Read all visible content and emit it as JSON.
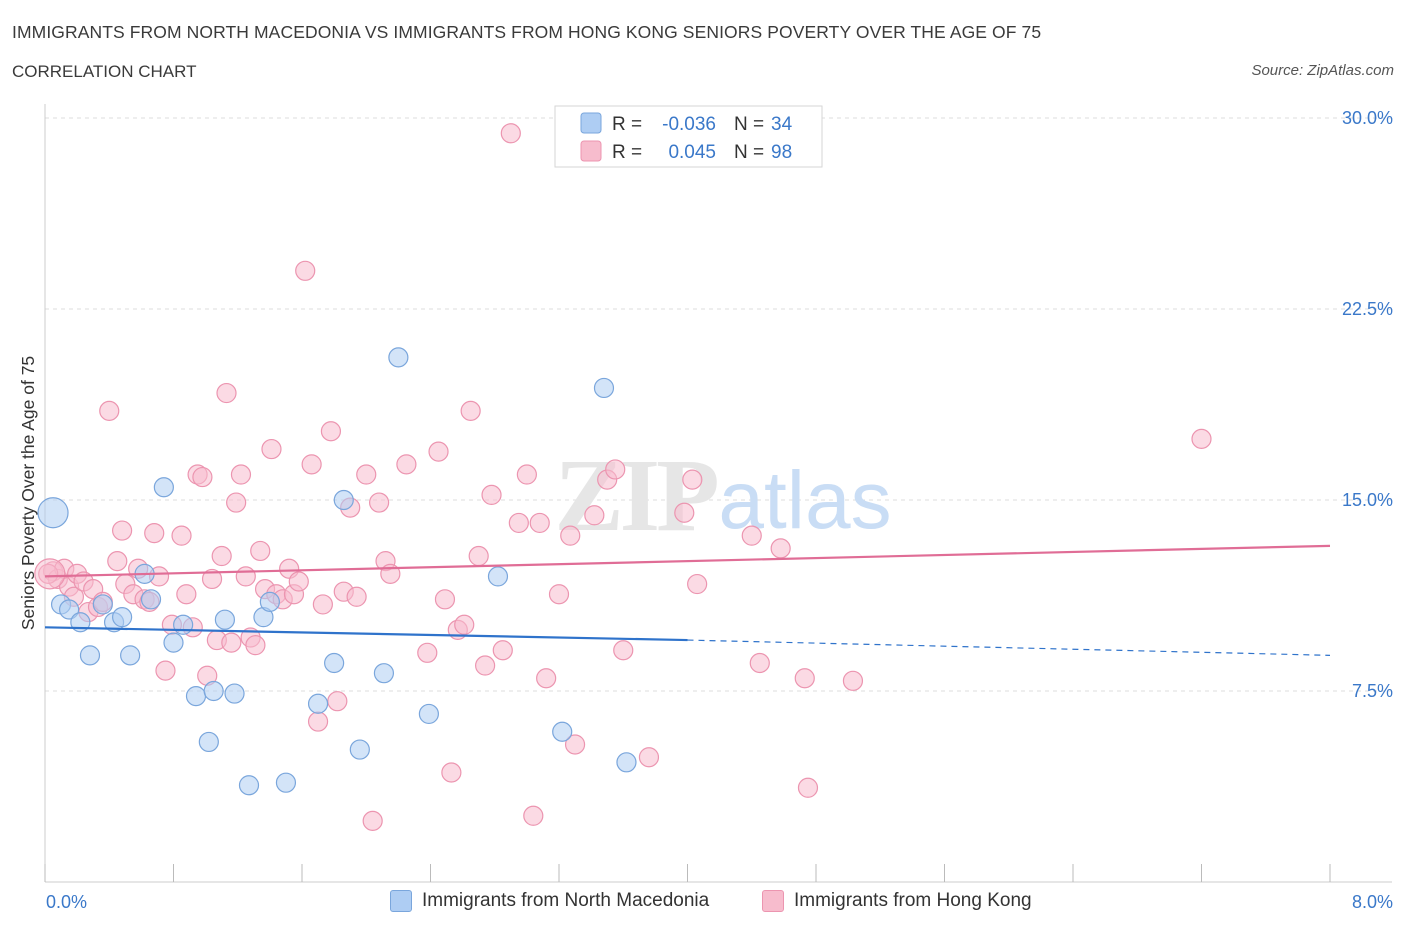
{
  "header": {
    "title": "IMMIGRANTS FROM NORTH MACEDONIA VS IMMIGRANTS FROM HONG KONG SENIORS POVERTY OVER THE AGE OF 75",
    "subtitle": "CORRELATION CHART",
    "source": "Source: ZipAtlas.com"
  },
  "watermark": {
    "zip": "ZIP",
    "atlas": "atlas"
  },
  "colors": {
    "blue_fill": "#aecdf3",
    "blue_stroke": "#7aa6dc",
    "blue_line": "#2f73cb",
    "pink_fill": "#f7bccd",
    "pink_stroke": "#ec95b0",
    "pink_line": "#e06d96",
    "axis_label": "#3a78c9",
    "grid": "#dddddd"
  },
  "stats_box": {
    "rows": [
      {
        "r_label": "R =",
        "r_value": "-0.036",
        "n_label": "N =",
        "n_value": "34",
        "series": "blue"
      },
      {
        "r_label": "R =",
        "r_value": "0.045",
        "n_label": "N =",
        "n_value": "98",
        "series": "pink"
      }
    ]
  },
  "chart_data": {
    "type": "scatter",
    "title": "IMMIGRANTS FROM NORTH MACEDONIA VS IMMIGRANTS FROM HONG KONG SENIORS POVERTY OVER THE AGE OF 75",
    "xlabel": "",
    "ylabel": "Seniors Poverty Over the Age of 75",
    "xlim": [
      0,
      8
    ],
    "ylim": [
      0,
      30
    ],
    "x_tick_labels": [
      "0.0%",
      "8.0%"
    ],
    "y_ticks": [
      7.5,
      15,
      22.5,
      30
    ],
    "y_tick_labels": [
      "7.5%",
      "15.0%",
      "22.5%",
      "30.0%"
    ],
    "grid": "horizontal dashed",
    "legend_position": "bottom-center",
    "series": [
      {
        "name": "Immigrants from North Macedonia",
        "color": "blue",
        "R": -0.036,
        "N": 34,
        "trend": {
          "x": [
            0,
            4
          ],
          "y": [
            10.0,
            9.5
          ],
          "dashed_to": [
            8,
            8.9
          ]
        },
        "points": [
          [
            0.05,
            14.5
          ],
          [
            0.1,
            10.9
          ],
          [
            0.15,
            10.7
          ],
          [
            0.22,
            10.2
          ],
          [
            0.28,
            8.9
          ],
          [
            0.36,
            10.9
          ],
          [
            0.43,
            10.2
          ],
          [
            0.48,
            10.4
          ],
          [
            0.53,
            8.9
          ],
          [
            0.62,
            12.1
          ],
          [
            0.66,
            11.1
          ],
          [
            0.74,
            15.5
          ],
          [
            0.8,
            9.4
          ],
          [
            0.86,
            10.1
          ],
          [
            0.94,
            7.3
          ],
          [
            1.02,
            5.5
          ],
          [
            1.05,
            7.5
          ],
          [
            1.12,
            10.3
          ],
          [
            1.18,
            7.4
          ],
          [
            1.27,
            3.8
          ],
          [
            1.36,
            10.4
          ],
          [
            1.4,
            11.0
          ],
          [
            1.5,
            3.9
          ],
          [
            1.7,
            7.0
          ],
          [
            1.8,
            8.6
          ],
          [
            1.86,
            15.0
          ],
          [
            1.96,
            5.2
          ],
          [
            2.11,
            8.2
          ],
          [
            2.2,
            20.6
          ],
          [
            2.39,
            6.6
          ],
          [
            2.82,
            12.0
          ],
          [
            3.22,
            5.9
          ],
          [
            3.48,
            19.4
          ],
          [
            3.62,
            4.7
          ]
        ]
      },
      {
        "name": "Immigrants from Hong Kong",
        "color": "pink",
        "R": 0.045,
        "N": 98,
        "trend": {
          "x": [
            0,
            8
          ],
          "y": [
            12.0,
            13.2
          ]
        },
        "points": [
          [
            0.05,
            12.2
          ],
          [
            0.08,
            11.9
          ],
          [
            0.12,
            12.3
          ],
          [
            0.15,
            11.6
          ],
          [
            0.18,
            11.2
          ],
          [
            0.2,
            12.1
          ],
          [
            0.24,
            11.8
          ],
          [
            0.27,
            10.6
          ],
          [
            0.3,
            11.5
          ],
          [
            0.33,
            10.8
          ],
          [
            0.36,
            11.0
          ],
          [
            0.4,
            18.5
          ],
          [
            0.45,
            12.6
          ],
          [
            0.48,
            13.8
          ],
          [
            0.5,
            11.7
          ],
          [
            0.55,
            11.3
          ],
          [
            0.58,
            12.3
          ],
          [
            0.62,
            11.1
          ],
          [
            0.65,
            11.0
          ],
          [
            0.68,
            13.7
          ],
          [
            0.71,
            12.0
          ],
          [
            0.75,
            8.3
          ],
          [
            0.79,
            10.1
          ],
          [
            0.85,
            13.6
          ],
          [
            0.88,
            11.3
          ],
          [
            0.92,
            10.0
          ],
          [
            0.95,
            16.0
          ],
          [
            0.98,
            15.9
          ],
          [
            1.01,
            8.1
          ],
          [
            1.04,
            11.9
          ],
          [
            1.07,
            9.5
          ],
          [
            1.1,
            12.8
          ],
          [
            1.13,
            19.2
          ],
          [
            1.16,
            9.4
          ],
          [
            1.19,
            14.9
          ],
          [
            1.22,
            16.0
          ],
          [
            1.25,
            12.0
          ],
          [
            1.28,
            9.6
          ],
          [
            1.31,
            9.3
          ],
          [
            1.34,
            13.0
          ],
          [
            1.37,
            11.5
          ],
          [
            1.41,
            17.0
          ],
          [
            1.44,
            11.3
          ],
          [
            1.48,
            11.1
          ],
          [
            1.52,
            12.3
          ],
          [
            1.55,
            11.3
          ],
          [
            1.58,
            11.8
          ],
          [
            1.62,
            24.0
          ],
          [
            1.66,
            16.4
          ],
          [
            1.7,
            6.3
          ],
          [
            1.73,
            10.9
          ],
          [
            1.78,
            17.7
          ],
          [
            1.82,
            7.1
          ],
          [
            1.86,
            11.4
          ],
          [
            1.9,
            14.7
          ],
          [
            1.94,
            11.2
          ],
          [
            2.0,
            16.0
          ],
          [
            2.04,
            2.4
          ],
          [
            2.08,
            14.9
          ],
          [
            2.12,
            12.6
          ],
          [
            2.15,
            12.1
          ],
          [
            2.25,
            16.4
          ],
          [
            2.38,
            9.0
          ],
          [
            2.45,
            16.9
          ],
          [
            2.49,
            11.1
          ],
          [
            2.53,
            4.3
          ],
          [
            2.57,
            9.9
          ],
          [
            2.61,
            10.1
          ],
          [
            2.65,
            18.5
          ],
          [
            2.7,
            12.8
          ],
          [
            2.74,
            8.5
          ],
          [
            2.78,
            15.2
          ],
          [
            2.85,
            9.1
          ],
          [
            2.9,
            29.4
          ],
          [
            2.95,
            14.1
          ],
          [
            3.0,
            16.0
          ],
          [
            3.04,
            2.6
          ],
          [
            3.08,
            14.1
          ],
          [
            3.12,
            8.0
          ],
          [
            3.2,
            11.3
          ],
          [
            3.27,
            13.6
          ],
          [
            3.3,
            5.4
          ],
          [
            3.42,
            14.4
          ],
          [
            3.5,
            15.8
          ],
          [
            3.55,
            16.2
          ],
          [
            3.6,
            9.1
          ],
          [
            3.76,
            4.9
          ],
          [
            3.98,
            14.5
          ],
          [
            4.03,
            15.8
          ],
          [
            4.06,
            11.7
          ],
          [
            4.4,
            13.6
          ],
          [
            4.45,
            8.6
          ],
          [
            4.58,
            13.1
          ],
          [
            4.73,
            8.0
          ],
          [
            4.75,
            3.7
          ],
          [
            5.03,
            7.9
          ],
          [
            7.2,
            17.4
          ],
          [
            0.02,
            12.1
          ]
        ]
      }
    ]
  }
}
